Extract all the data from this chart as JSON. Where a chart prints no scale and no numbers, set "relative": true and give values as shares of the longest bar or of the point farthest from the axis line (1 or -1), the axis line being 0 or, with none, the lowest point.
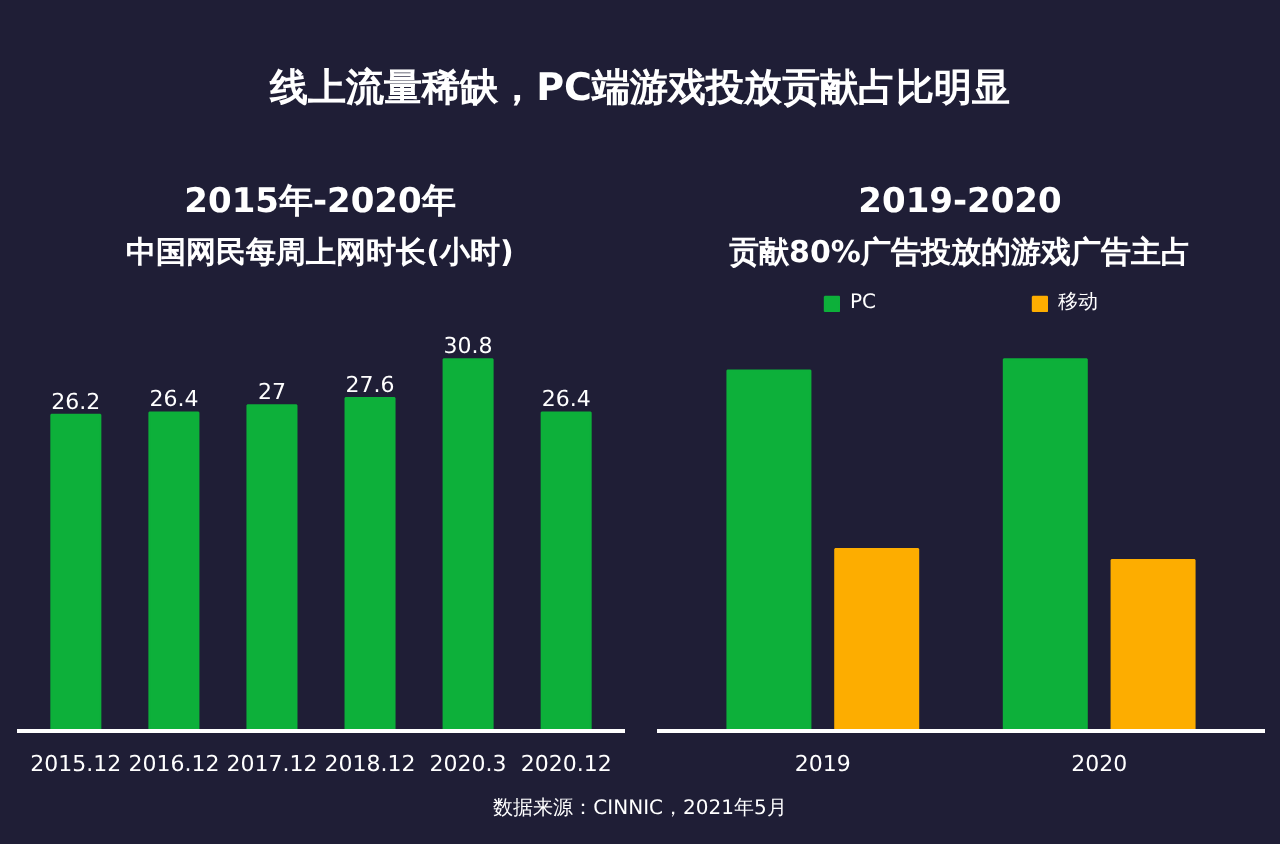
{
  "chart_data": [
    {
      "type": "bar",
      "title": "2015年-2020年",
      "subtitle": "中国网民每周上网时长(小时)",
      "annotations": [
        "线上流量稀缺，PC端游戏投放贡献占比明显"
      ],
      "categories": [
        "2015.12",
        "2016.12",
        "2017.12",
        "2018.12",
        "2020.3",
        "2020.12"
      ],
      "values": [
        26.2,
        26.4,
        27,
        27.6,
        30.8,
        26.4
      ],
      "color": "#0db03a",
      "data_labels": true,
      "tick_labels": "x"
    },
    {
      "type": "bar",
      "title": "2019-2020",
      "subtitle": "贡献80%广告投放的游戏广告主占",
      "categories": [
        "2019",
        "2020"
      ],
      "series": [
        {
          "name": "PC",
          "color": "#0db03a",
          "values": [
            0.97,
            1
          ]
        },
        {
          "name": "移动",
          "color": "#fdad00",
          "values": [
            0.49,
            0.46
          ]
        }
      ],
      "relative": true,
      "legend": "top",
      "annotations": [
        "数据来源：CINNIC，2021年5月"
      ]
    }
  ]
}
